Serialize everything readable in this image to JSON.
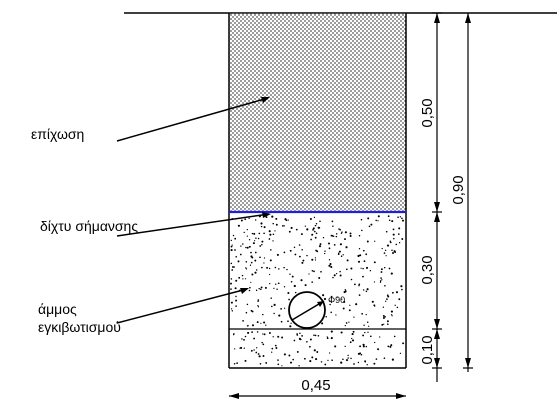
{
  "labels": {
    "backfill": "επίχωση",
    "warning_net": "δίχτυ σήμανσης",
    "sand_line1": "άμμος",
    "sand_line2": "εγκιβωτισμού",
    "pipe": "Φ90"
  },
  "dimensions": {
    "width": "0,45",
    "layer_top": "0,50",
    "layer_mid": "0,30",
    "layer_bottom": "0,10",
    "total_depth": "0,90"
  },
  "colors": {
    "lines": "#000000",
    "warning_net": "#1f1fd6",
    "backfill_dots": "#555555"
  }
}
